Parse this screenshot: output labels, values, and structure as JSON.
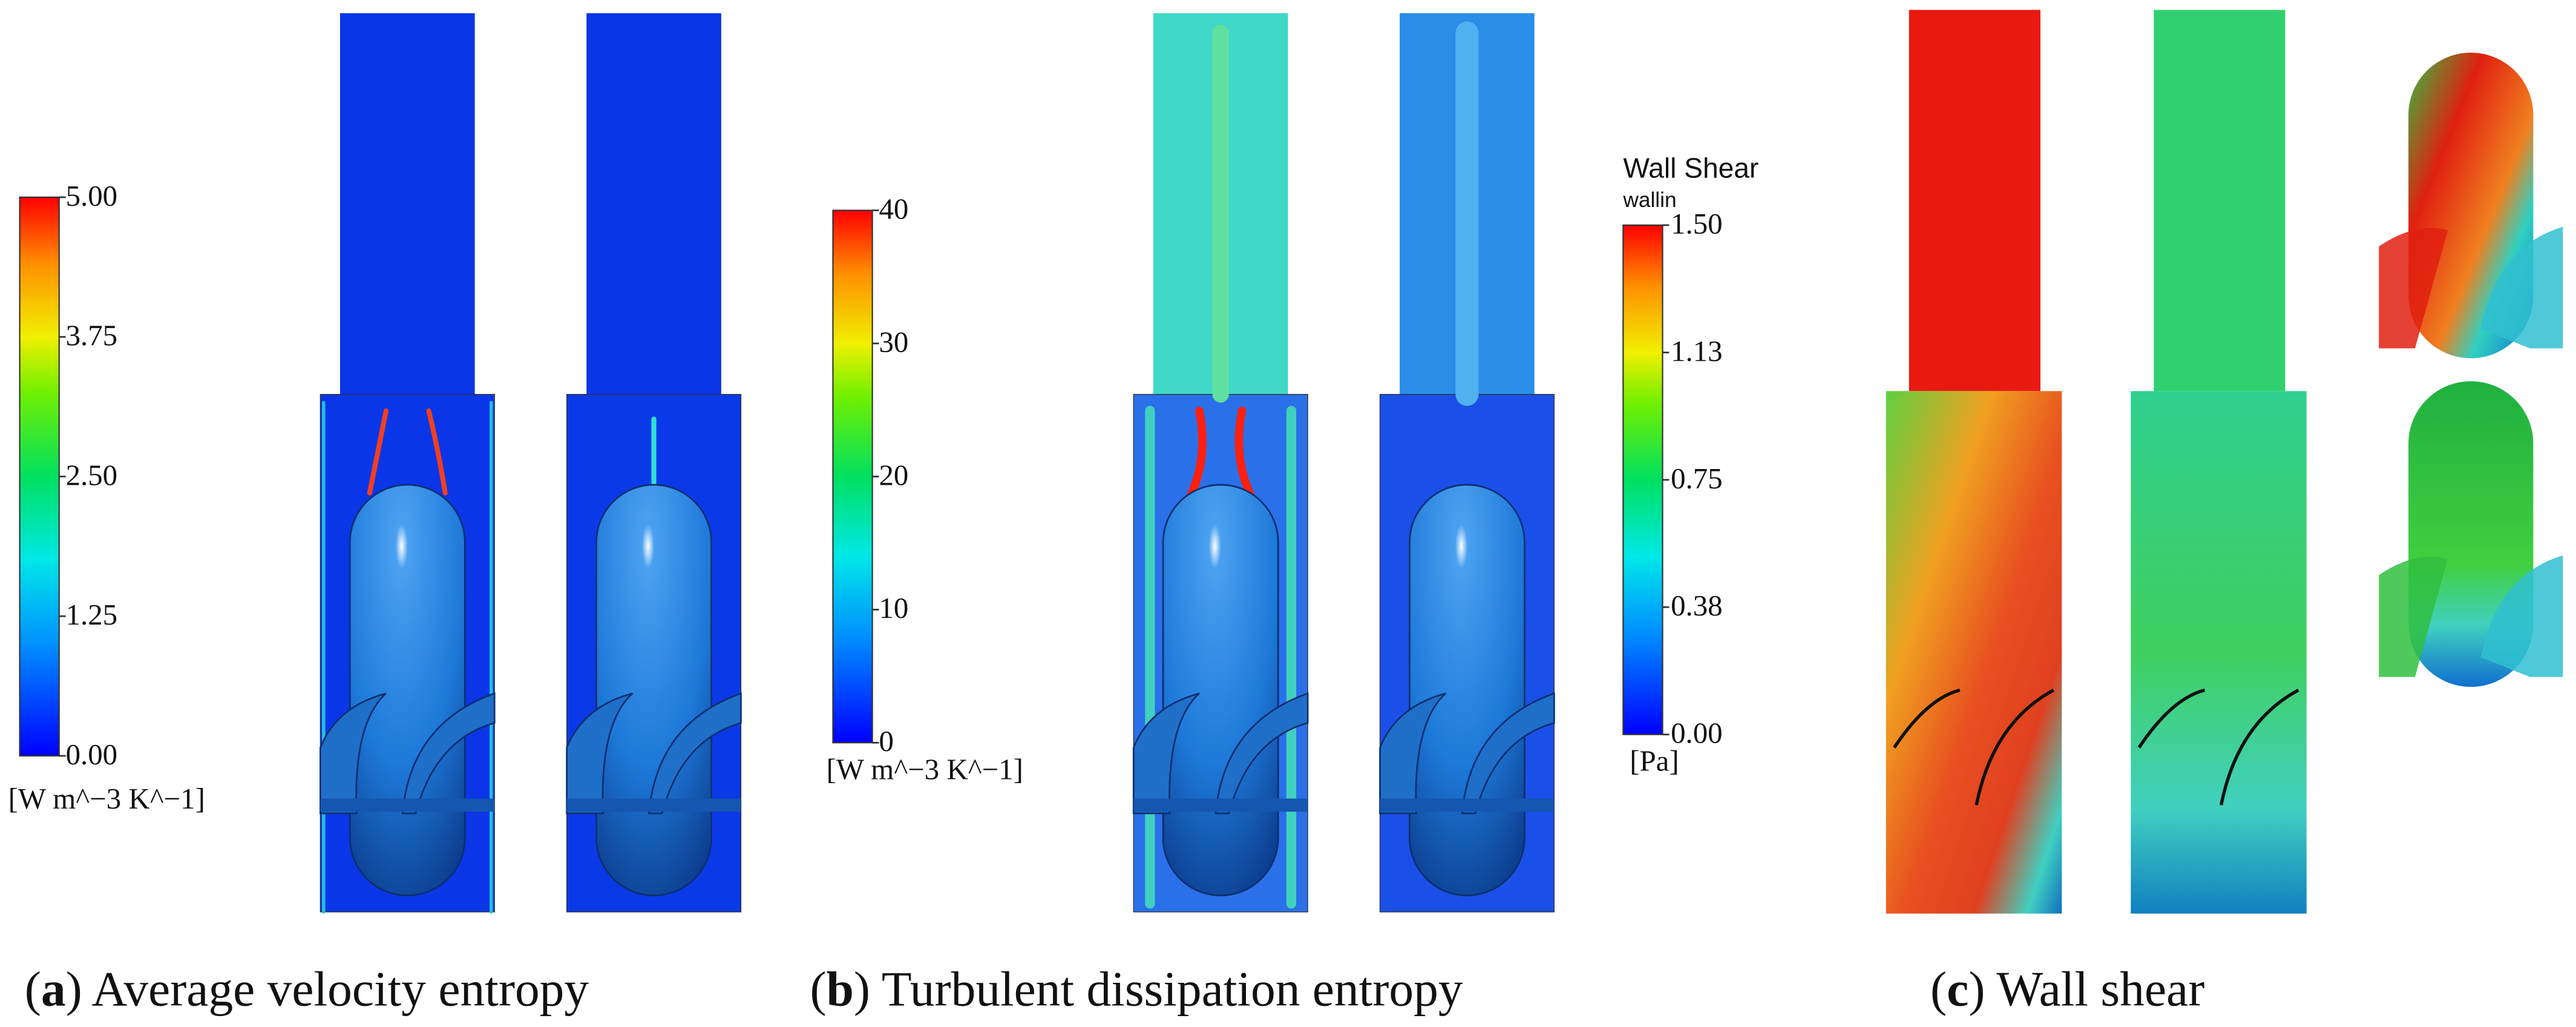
{
  "panels": [
    {
      "caption": [
        "(",
        "a",
        ") Average velocity entropy"
      ],
      "colorbar": {
        "ticks": [
          "5.00",
          "3.75",
          "2.50",
          "1.25",
          "0.00"
        ],
        "unit": "[W m^−3 K^−1]"
      }
    },
    {
      "caption": [
        "(",
        "b",
        ") Turbulent dissipation entropy"
      ],
      "colorbar": {
        "ticks": [
          "40",
          "30",
          "20",
          "10",
          "0"
        ],
        "unit": "[W m^−3 K^−1]"
      }
    },
    {
      "caption": [
        "(",
        "c",
        ") Wall shear"
      ],
      "colorbar": {
        "title": "Wall Shear",
        "subtitle": "wallin",
        "ticks": [
          "1.50",
          "1.13",
          "0.75",
          "0.38",
          "0.00"
        ],
        "unit": "[Pa]"
      }
    }
  ]
}
